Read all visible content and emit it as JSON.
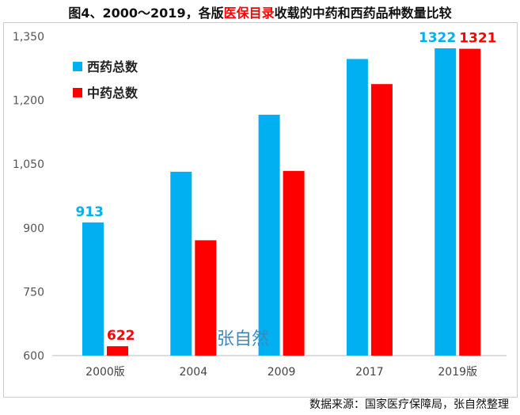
{
  "title": {
    "prefix": "图4、2000～2019，各版",
    "highlight": "医保目录",
    "suffix": "收载的中药和西药品种数量比较"
  },
  "source": "数据来源：国家医疗保障局，张自然整理",
  "watermark": "张自然",
  "chart_data": {
    "type": "bar",
    "categories": [
      "2000版",
      "2004",
      "2009",
      "2017",
      "2019版"
    ],
    "ylim": [
      600,
      1350
    ],
    "yticks": [
      600,
      750,
      900,
      1050,
      1200,
      1350
    ],
    "ytick_labels": [
      "600",
      "750",
      "900",
      "1,050",
      "1,200",
      "1,350"
    ],
    "grid": false,
    "legend": "top-left",
    "series": [
      {
        "name": "西药总数",
        "color": "#00b0f0",
        "values": [
          913,
          1032,
          1166,
          1297,
          1322
        ],
        "labels": [
          "913",
          "",
          "",
          "",
          "1322"
        ]
      },
      {
        "name": "中药总数",
        "color": "#ff0000",
        "values": [
          622,
          871,
          1034,
          1238,
          1321
        ],
        "labels": [
          "622",
          "",
          "",
          "",
          "1321"
        ]
      }
    ]
  }
}
